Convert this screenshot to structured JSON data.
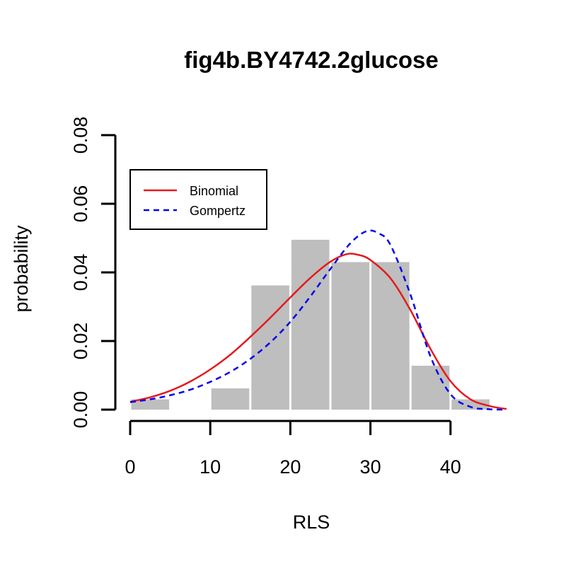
{
  "chart_data": {
    "type": "bar",
    "title": "fig4b.BY4742.2glucose",
    "xlabel": "RLS",
    "ylabel": "probability",
    "xlim": [
      0,
      47
    ],
    "ylim": [
      0,
      0.08
    ],
    "xticks": [
      0,
      10,
      20,
      30,
      40
    ],
    "xtick_labels": [
      "0",
      "10",
      "20",
      "30",
      "40"
    ],
    "yticks": [
      0,
      0.02,
      0.04,
      0.06,
      0.08
    ],
    "ytick_labels": [
      "0.00",
      "0.02",
      "0.04",
      "0.06",
      "0.08"
    ],
    "grid": false,
    "legend_placement": "top-left",
    "histogram": {
      "color": "#bebebe",
      "bins": [
        {
          "start": 0,
          "end": 5,
          "value": 0.003
        },
        {
          "start": 5,
          "end": 10,
          "value": 0.0
        },
        {
          "start": 10,
          "end": 15,
          "value": 0.0062
        },
        {
          "start": 15,
          "end": 20,
          "value": 0.0362
        },
        {
          "start": 20,
          "end": 25,
          "value": 0.0495
        },
        {
          "start": 25,
          "end": 30,
          "value": 0.043
        },
        {
          "start": 30,
          "end": 35,
          "value": 0.043
        },
        {
          "start": 35,
          "end": 40,
          "value": 0.0128
        },
        {
          "start": 40,
          "end": 45,
          "value": 0.003
        }
      ]
    },
    "series": [
      {
        "name": "Binomial",
        "color": "#e41a1c",
        "style": "solid",
        "x": [
          0,
          2.5,
          5,
          7.5,
          10,
          12.5,
          15,
          17.5,
          20,
          22.5,
          25,
          27,
          28.5,
          30,
          32.5,
          35,
          37.5,
          40,
          42.5,
          45,
          47
        ],
        "y": [
          0.0023,
          0.0036,
          0.0055,
          0.0082,
          0.0117,
          0.016,
          0.0212,
          0.0268,
          0.0327,
          0.0384,
          0.0431,
          0.0453,
          0.0451,
          0.0436,
          0.0383,
          0.029,
          0.0177,
          0.0083,
          0.003,
          0.001,
          0.0002
        ]
      },
      {
        "name": "Gompertz",
        "color": "#0000ee",
        "style": "dashed",
        "x": [
          0,
          2.5,
          5,
          7.5,
          10,
          12.5,
          15,
          17.5,
          20,
          22.5,
          25,
          27.5,
          29.5,
          31,
          32.5,
          35,
          37.5,
          40,
          42.5,
          45,
          47
        ],
        "y": [
          0.0022,
          0.003,
          0.0042,
          0.0058,
          0.0081,
          0.011,
          0.0148,
          0.0196,
          0.0256,
          0.033,
          0.041,
          0.0485,
          0.052,
          0.0514,
          0.048,
          0.0335,
          0.0155,
          0.0045,
          0.0008,
          0.0001,
          0.0
        ]
      }
    ]
  }
}
